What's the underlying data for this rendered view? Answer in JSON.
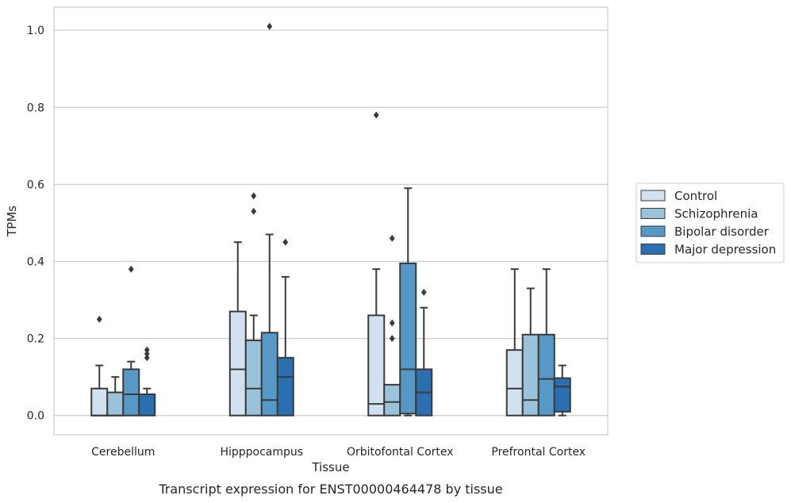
{
  "caption": "Transcript expression for ENST00000464478 by tissue",
  "chart_data": {
    "type": "box",
    "xlabel": "Tissue",
    "ylabel": "TPMs",
    "ylim": [
      -0.05,
      1.06
    ],
    "yticks": [
      "0.0",
      "0.2",
      "0.4",
      "0.6",
      "0.8",
      "1.0"
    ],
    "grid": true,
    "legend_position": "right",
    "categories": [
      "Cerebellum",
      "Hipppocampus",
      "Orbitofontal Cortex",
      "Prefrontal Cortex"
    ],
    "series": [
      {
        "name": "Control",
        "color": "#d1e1f0",
        "boxes": [
          {
            "whisker_low": 0.0,
            "q1": 0.0,
            "median": 0.0,
            "q3": 0.07,
            "whisker_high": 0.13,
            "outliers": [
              0.25
            ]
          },
          {
            "whisker_low": 0.0,
            "q1": 0.0,
            "median": 0.12,
            "q3": 0.27,
            "whisker_high": 0.45,
            "outliers": []
          },
          {
            "whisker_low": 0.0,
            "q1": 0.0,
            "median": 0.03,
            "q3": 0.26,
            "whisker_high": 0.38,
            "outliers": [
              0.78
            ]
          },
          {
            "whisker_low": 0.0,
            "q1": 0.0,
            "median": 0.07,
            "q3": 0.17,
            "whisker_high": 0.38,
            "outliers": []
          }
        ]
      },
      {
        "name": "Schizophrenia",
        "color": "#9ac2da",
        "boxes": [
          {
            "whisker_low": 0.0,
            "q1": 0.0,
            "median": 0.0,
            "q3": 0.06,
            "whisker_high": 0.1,
            "outliers": []
          },
          {
            "whisker_low": 0.0,
            "q1": 0.0,
            "median": 0.07,
            "q3": 0.195,
            "whisker_high": 0.26,
            "outliers": [
              0.53,
              0.57
            ]
          },
          {
            "whisker_low": 0.0,
            "q1": 0.0,
            "median": 0.035,
            "q3": 0.08,
            "whisker_high": 0.08,
            "outliers": [
              0.2,
              0.24,
              0.46
            ]
          },
          {
            "whisker_low": 0.0,
            "q1": 0.0,
            "median": 0.04,
            "q3": 0.21,
            "whisker_high": 0.33,
            "outliers": []
          }
        ]
      },
      {
        "name": "Bipolar disorder",
        "color": "#5799c6",
        "boxes": [
          {
            "whisker_low": 0.0,
            "q1": 0.0,
            "median": 0.055,
            "q3": 0.12,
            "whisker_high": 0.14,
            "outliers": [
              0.38
            ]
          },
          {
            "whisker_low": 0.0,
            "q1": 0.0,
            "median": 0.04,
            "q3": 0.215,
            "whisker_high": 0.47,
            "outliers": [
              1.01
            ]
          },
          {
            "whisker_low": 0.0,
            "q1": 0.005,
            "median": 0.12,
            "q3": 0.395,
            "whisker_high": 0.59,
            "outliers": []
          },
          {
            "whisker_low": 0.0,
            "q1": 0.0,
            "median": 0.095,
            "q3": 0.21,
            "whisker_high": 0.38,
            "outliers": []
          }
        ]
      },
      {
        "name": "Major depression",
        "color": "#2a6fb0",
        "boxes": [
          {
            "whisker_low": 0.0,
            "q1": 0.0,
            "median": 0.055,
            "q3": 0.055,
            "whisker_high": 0.07,
            "outliers": [
              0.15,
              0.16,
              0.17
            ]
          },
          {
            "whisker_low": 0.0,
            "q1": 0.0,
            "median": 0.1,
            "q3": 0.15,
            "whisker_high": 0.36,
            "outliers": [
              0.45
            ]
          },
          {
            "whisker_low": 0.0,
            "q1": 0.0,
            "median": 0.06,
            "q3": 0.12,
            "whisker_high": 0.28,
            "outliers": [
              0.32
            ]
          },
          {
            "whisker_low": 0.0,
            "q1": 0.01,
            "median": 0.075,
            "q3": 0.097,
            "whisker_high": 0.13,
            "outliers": []
          }
        ]
      }
    ]
  }
}
